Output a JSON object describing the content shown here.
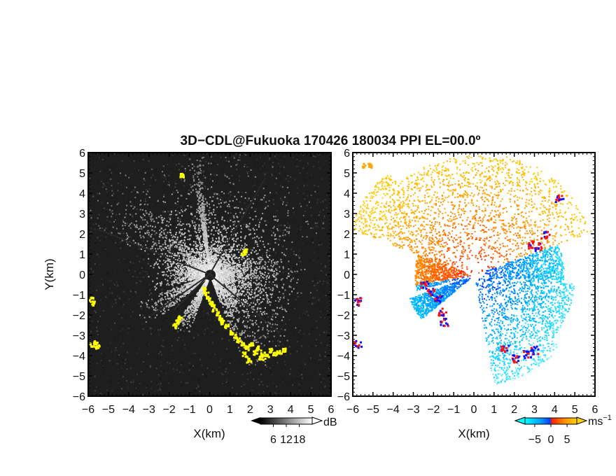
{
  "title": "3D−CDL@Fukuoka 170426 180034 PPI EL=00.0º",
  "chart_data": [
    {
      "type": "heatmap",
      "panel": "left",
      "quantity": "echo intensity",
      "xlabel": "X(km)",
      "ylabel": "Y(km)",
      "xlim": [
        -6,
        6
      ],
      "ylim": [
        -6,
        6
      ],
      "xticks": [
        "−6",
        "−5",
        "−4",
        "−3",
        "−2",
        "−1",
        "0",
        "1",
        "2",
        "3",
        "4",
        "5",
        "6"
      ],
      "yticks": [
        "6",
        "5",
        "4",
        "3",
        "2",
        "1",
        "0",
        "−1",
        "−2",
        "−3",
        "−4",
        "−5",
        "−6"
      ],
      "background_color": "#1e1e1e",
      "highlight_color": "#ffff00",
      "colorbar": {
        "ticks": [
          "6",
          "12",
          "18"
        ],
        "tick_values": [
          6,
          12,
          18
        ],
        "range": [
          0,
          24
        ],
        "unit": "dB",
        "colors": [
          "#000000",
          "#ffffff"
        ]
      }
    },
    {
      "type": "heatmap",
      "panel": "right",
      "quantity": "radial velocity",
      "xlabel": "X(km)",
      "ylabel": "",
      "xlim": [
        -6,
        6
      ],
      "ylim": [
        -6,
        6
      ],
      "xticks": [
        "−6",
        "−5",
        "−4",
        "−3",
        "−2",
        "−1",
        "0",
        "1",
        "2",
        "3",
        "4",
        "5",
        "6"
      ],
      "yticks": [
        "6",
        "5",
        "4",
        "3",
        "2",
        "1",
        "0",
        "−1",
        "−2",
        "−3",
        "−4",
        "−5",
        "−6"
      ],
      "background_color": "#ffffff",
      "colorbar": {
        "ticks": [
          "−5",
          "0",
          "5"
        ],
        "tick_values": [
          -5,
          0,
          5
        ],
        "range": [
          -8,
          8
        ],
        "unit": "ms",
        "unit_exponent": "−1",
        "colors": [
          "#00ffff",
          "#0060ff",
          "#ff2000",
          "#ff9000",
          "#ffd000"
        ]
      }
    }
  ]
}
